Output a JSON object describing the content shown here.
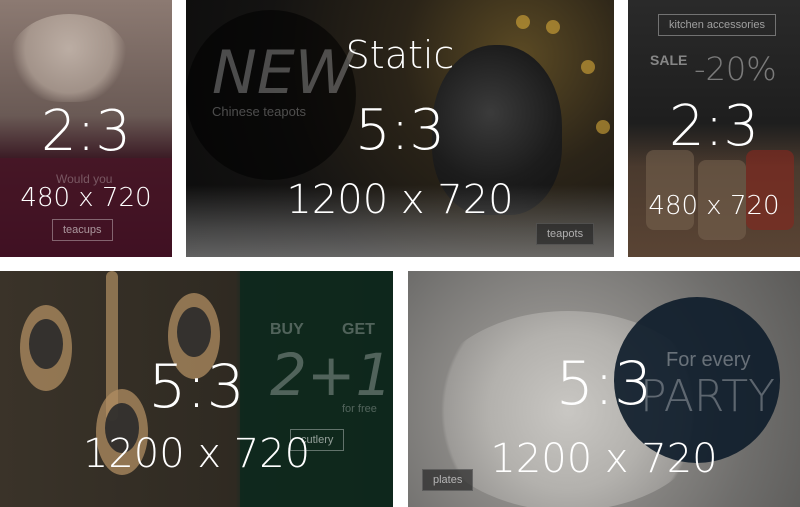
{
  "page": {
    "title": "Static"
  },
  "tiles": [
    {
      "ratio": "2:3",
      "dimensions": "480 x 720",
      "ad": {
        "headline": "Would you",
        "button": "teacups"
      }
    },
    {
      "ratio": "5:3",
      "dimensions": "1200 x 720",
      "ad": {
        "headline": "NEW",
        "subline": "Chinese teapots",
        "button": "teapots"
      }
    },
    {
      "ratio": "2:3",
      "dimensions": "480 x 720",
      "ad": {
        "badge": "kitchen accessories",
        "sale": "SALE",
        "discount": "-20%"
      }
    },
    {
      "ratio": "5:3",
      "dimensions": "1200 x 720",
      "ad": {
        "buy": "BUY",
        "get": "GET",
        "offer": "2+1",
        "note": "for free",
        "button": "cutlery"
      }
    },
    {
      "ratio": "5:3",
      "dimensions": "1200 x 720",
      "ad": {
        "tagline": "For every",
        "headline": "PARTY",
        "button": "plates"
      }
    }
  ],
  "colors": {
    "overlay_text": "#ffffff",
    "background": "#ffffff"
  }
}
